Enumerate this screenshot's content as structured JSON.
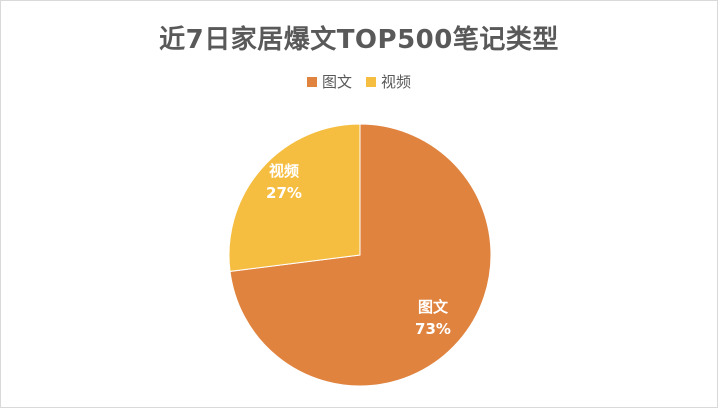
{
  "chart_data": {
    "type": "pie",
    "title": "近7日家居爆文TOP500笔记类型",
    "legend_position": "top",
    "slices": [
      {
        "label": "图文",
        "value": 73,
        "value_label": "73%",
        "color": "#e0833f"
      },
      {
        "label": "视频",
        "value": 27,
        "value_label": "27%",
        "color": "#f5be41"
      }
    ]
  }
}
